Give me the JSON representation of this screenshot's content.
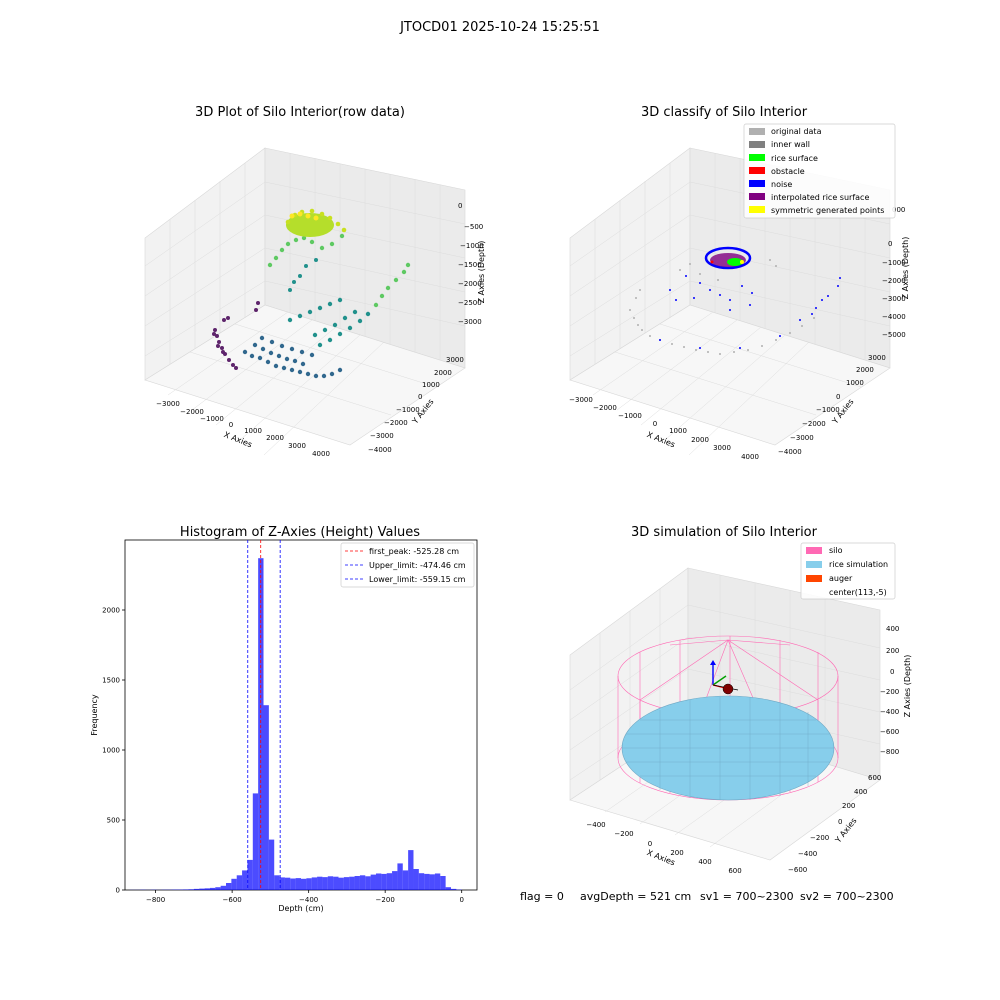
{
  "suptitle": "JTOCD01 2025-10-24 15:25:51",
  "footer": {
    "flag": "flag = 0",
    "avg_depth": "avgDepth = 521 cm",
    "sv1": "sv1 = 700~2300",
    "sv2": "sv2 = 700~2300"
  },
  "plot1": {
    "title": "3D Plot of Silo Interior(row data)",
    "xlabel": "X Axies",
    "ylabel": "Y Axies",
    "zlabel": "Z Axies (Depth)",
    "xticks": [
      "−3000",
      "−2000",
      "−1000",
      "0",
      "1000",
      "2000",
      "3000",
      "4000"
    ],
    "yticks": [
      "−4000",
      "−3000",
      "−2000",
      "−1000",
      "0",
      "1000",
      "2000",
      "3000"
    ],
    "zticks": [
      "0",
      "−500",
      "−1000",
      "−1500",
      "−2000",
      "−2500",
      "−3000"
    ]
  },
  "plot2": {
    "title": "3D classify of Silo Interior",
    "xlabel": "X Axies",
    "ylabel": "Y Axies",
    "zlabel": "Z Axies (Depth)",
    "xticks": [
      "−3000",
      "−2000",
      "−1000",
      "0",
      "1000",
      "2000",
      "3000",
      "4000"
    ],
    "yticks": [
      "−4000",
      "−3000",
      "−2000",
      "−1000",
      "0",
      "1000",
      "2000",
      "3000"
    ],
    "zticks": [
      "000",
      "0",
      "−1000",
      "−2000",
      "−3000",
      "−4000",
      "−5000"
    ],
    "legend": [
      {
        "label": "original data",
        "color": "#b0b0b0"
      },
      {
        "label": "inner wall",
        "color": "#808080"
      },
      {
        "label": "rice surface",
        "color": "#00ff00"
      },
      {
        "label": "obstacle",
        "color": "#ff0000"
      },
      {
        "label": "noise",
        "color": "#0000ff"
      },
      {
        "label": "interpolated rice surface",
        "color": "#800080"
      },
      {
        "label": "symmetric generated points",
        "color": "#ffff00"
      }
    ]
  },
  "plot3": {
    "title": "3D simulation of Silo Interior",
    "xlabel": "X Axies",
    "ylabel": "Y Axies",
    "zlabel": "Z Axies (Depth)",
    "xticks": [
      "−400",
      "−200",
      "0",
      "200",
      "400",
      "600"
    ],
    "yticks": [
      "−600",
      "−400",
      "−200",
      "0",
      "200",
      "400",
      "600"
    ],
    "zticks": [
      "400",
      "200",
      "0",
      "−200",
      "−400",
      "−600",
      "−800"
    ],
    "legend": [
      {
        "label": "silo",
        "color": "#ff69b4"
      },
      {
        "label": "rice simulation",
        "color": "#87ceeb"
      },
      {
        "label": "auger",
        "color": "#ff4500"
      },
      {
        "label": "center(113,-5)",
        "color": ""
      }
    ]
  },
  "chart_data": {
    "type": "bar",
    "title": "Histogram of Z-Axies (Height) Values",
    "xlabel": "Depth (cm)",
    "ylabel": "Frequency",
    "xlim": [
      -880,
      40
    ],
    "ylim": [
      0,
      2500
    ],
    "xticks": [
      -800,
      -600,
      -400,
      -200,
      0
    ],
    "yticks": [
      0,
      500,
      1000,
      1500,
      2000
    ],
    "bar_color": "#0000ff",
    "bin_width": 14,
    "bins": [
      {
        "x": -868,
        "y": 1
      },
      {
        "x": -854,
        "y": 1
      },
      {
        "x": -840,
        "y": 2
      },
      {
        "x": -826,
        "y": 1
      },
      {
        "x": -812,
        "y": 2
      },
      {
        "x": -798,
        "y": 1
      },
      {
        "x": -784,
        "y": 2
      },
      {
        "x": -770,
        "y": 2
      },
      {
        "x": -756,
        "y": 3
      },
      {
        "x": -742,
        "y": 3
      },
      {
        "x": -728,
        "y": 4
      },
      {
        "x": -714,
        "y": 5
      },
      {
        "x": -700,
        "y": 8
      },
      {
        "x": -686,
        "y": 10
      },
      {
        "x": -672,
        "y": 12
      },
      {
        "x": -658,
        "y": 15
      },
      {
        "x": -644,
        "y": 20
      },
      {
        "x": -630,
        "y": 30
      },
      {
        "x": -616,
        "y": 50
      },
      {
        "x": -602,
        "y": 80
      },
      {
        "x": -588,
        "y": 105
      },
      {
        "x": -574,
        "y": 140
      },
      {
        "x": -560,
        "y": 215
      },
      {
        "x": -546,
        "y": 690
      },
      {
        "x": -532,
        "y": 2370
      },
      {
        "x": -518,
        "y": 1320
      },
      {
        "x": -504,
        "y": 360
      },
      {
        "x": -490,
        "y": 105
      },
      {
        "x": -476,
        "y": 90
      },
      {
        "x": -462,
        "y": 88
      },
      {
        "x": -448,
        "y": 82
      },
      {
        "x": -434,
        "y": 85
      },
      {
        "x": -420,
        "y": 80
      },
      {
        "x": -406,
        "y": 84
      },
      {
        "x": -392,
        "y": 90
      },
      {
        "x": -378,
        "y": 95
      },
      {
        "x": -364,
        "y": 92
      },
      {
        "x": -350,
        "y": 98
      },
      {
        "x": -336,
        "y": 95
      },
      {
        "x": -322,
        "y": 88
      },
      {
        "x": -308,
        "y": 92
      },
      {
        "x": -294,
        "y": 95
      },
      {
        "x": -280,
        "y": 100
      },
      {
        "x": -266,
        "y": 105
      },
      {
        "x": -252,
        "y": 98
      },
      {
        "x": -238,
        "y": 110
      },
      {
        "x": -224,
        "y": 118
      },
      {
        "x": -210,
        "y": 115
      },
      {
        "x": -196,
        "y": 120
      },
      {
        "x": -182,
        "y": 135
      },
      {
        "x": -168,
        "y": 190
      },
      {
        "x": -154,
        "y": 140
      },
      {
        "x": -140,
        "y": 285
      },
      {
        "x": -126,
        "y": 150
      },
      {
        "x": -112,
        "y": 120
      },
      {
        "x": -98,
        "y": 115
      },
      {
        "x": -84,
        "y": 112
      },
      {
        "x": -70,
        "y": 118
      },
      {
        "x": -56,
        "y": 100
      },
      {
        "x": -42,
        "y": 20
      },
      {
        "x": -28,
        "y": 8
      },
      {
        "x": -14,
        "y": 3
      }
    ],
    "vlines": [
      {
        "x": -525.28,
        "label": "first_peak: -525.28 cm",
        "color": "#ff0000"
      },
      {
        "x": -474.46,
        "label": "Upper_limit: -474.46 cm",
        "color": "#0000ff"
      },
      {
        "x": -559.15,
        "label": "Lower_limit: -559.15 cm",
        "color": "#0000ff"
      }
    ]
  }
}
